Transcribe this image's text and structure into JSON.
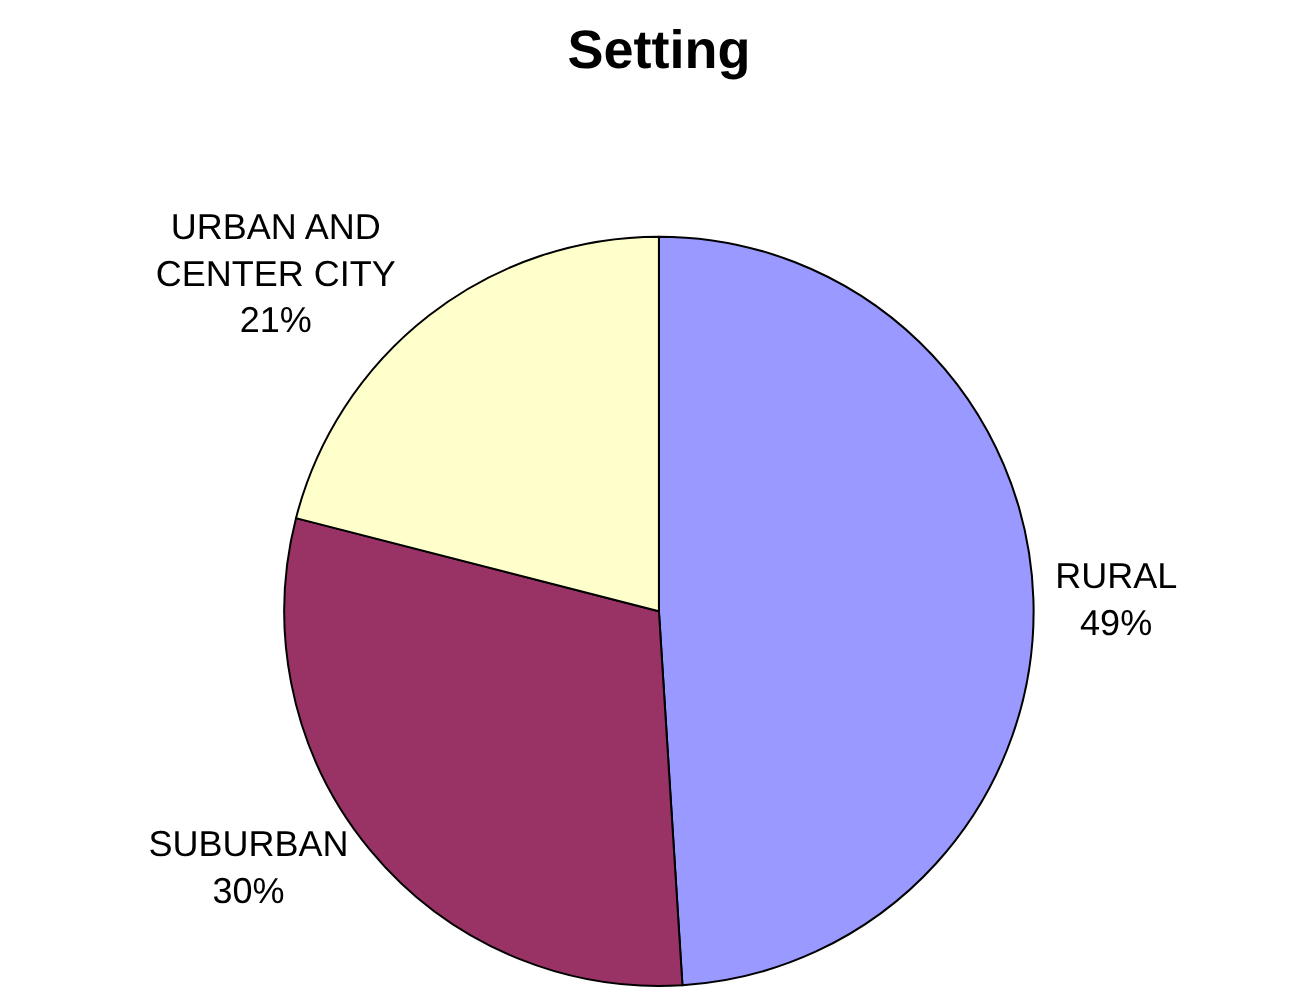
{
  "chart_data": {
    "type": "pie",
    "title": "Setting",
    "categories": [
      "RURAL",
      "SUBURBAN",
      "URBAN AND CENTER CITY"
    ],
    "values": [
      49,
      30,
      21
    ],
    "value_labels": [
      "49%",
      "30%",
      "21%"
    ],
    "colors": [
      "#9999ff",
      "#993366",
      "#ffffcc"
    ],
    "legend": false
  }
}
